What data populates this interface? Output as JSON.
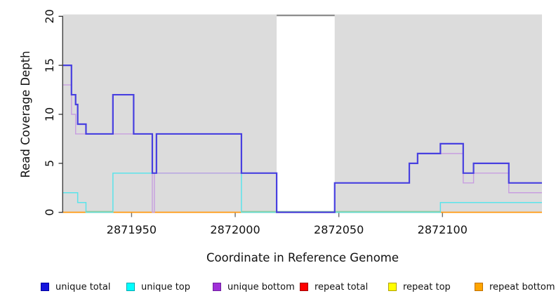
{
  "figure": {
    "xlabel": "Coordinate in Reference Genome",
    "ylabel": "Read Coverage Depth"
  },
  "chart_data": {
    "type": "line",
    "subtype": "step-coverage-plot",
    "title": "",
    "xlabel": "Coordinate in Reference Genome",
    "ylabel": "Read Coverage Depth",
    "xlim": [
      2871917,
      2872148
    ],
    "ylim": [
      0,
      20
    ],
    "x_ticks": [
      "2871950",
      "2872000",
      "2872050",
      "2872100"
    ],
    "x_tick_values": [
      2871950,
      2872000,
      2872050,
      2872100
    ],
    "y_ticks": [
      "0",
      "5",
      "10",
      "15",
      "20"
    ],
    "y_tick_values": [
      0,
      5,
      10,
      15,
      20
    ],
    "grid": false,
    "plot_bg_color": "#dcdcdc",
    "background_regions": [
      [
        2871917,
        2872020
      ],
      [
        2872048,
        2872148
      ]
    ],
    "coverage_gap": {
      "start": 2872020,
      "end": 2872048,
      "cap_value": 20.1,
      "cap_color": "#8f8f8f"
    },
    "series": [
      {
        "name": "repeat total",
        "color": "#dd1111",
        "width": 1.4,
        "steps": [
          [
            2871917,
            0
          ]
        ],
        "x_end": 2872148
      },
      {
        "name": "repeat top",
        "color": "#f2f20a",
        "width": 1.4,
        "steps": [
          [
            2871917,
            0
          ]
        ],
        "x_end": 2872148
      },
      {
        "name": "repeat bottom",
        "color": "#ff9d1c",
        "width": 1.8,
        "steps": [
          [
            2871917,
            0
          ]
        ],
        "x_end": 2872148
      },
      {
        "name": "unique top",
        "color": "#5be4ea",
        "width": 1.5,
        "zero_color": "#93cda0",
        "steps": [
          [
            2871917,
            2
          ],
          [
            2871924,
            1
          ],
          [
            2871928,
            0
          ],
          [
            2871941,
            4
          ],
          [
            2872003,
            0
          ],
          [
            2872099,
            1
          ]
        ],
        "x_end": 2872148
      },
      {
        "name": "unique bottom",
        "color": "#c79ee0",
        "width": 1.4,
        "steps": [
          [
            2871917,
            13
          ],
          [
            2871921,
            10
          ],
          [
            2871923,
            8
          ],
          [
            2871960,
            0
          ],
          [
            2871961,
            4
          ],
          [
            2872020,
            0
          ],
          [
            2872048,
            3
          ],
          [
            2872084,
            5
          ],
          [
            2872088,
            6
          ],
          [
            2872110,
            3
          ],
          [
            2872115,
            4
          ],
          [
            2872132,
            2
          ]
        ],
        "x_end": 2872148
      },
      {
        "name": "unique total",
        "color": "#4840e0",
        "width": 2.2,
        "steps": [
          [
            2871917,
            15
          ],
          [
            2871921,
            12
          ],
          [
            2871923,
            11
          ],
          [
            2871924,
            9
          ],
          [
            2871928,
            8
          ],
          [
            2871941,
            12
          ],
          [
            2871951,
            8
          ],
          [
            2871960,
            4
          ],
          [
            2871962,
            8
          ],
          [
            2872003,
            4
          ],
          [
            2872020,
            0
          ],
          [
            2872048,
            3
          ],
          [
            2872084,
            5
          ],
          [
            2872088,
            6
          ],
          [
            2872099,
            7
          ],
          [
            2872110,
            4
          ],
          [
            2872115,
            5
          ],
          [
            2872132,
            3
          ]
        ],
        "x_end": 2872148
      }
    ],
    "legend_position": "bottom"
  },
  "legend": {
    "items": [
      {
        "label": "unique total",
        "fill": "#1515dd",
        "border": "#0000a0"
      },
      {
        "label": "unique top",
        "fill": "#00ffff",
        "border": "#00a8b0"
      },
      {
        "label": "unique bottom",
        "fill": "#a030d8",
        "border": "#7020a0"
      },
      {
        "label": "repeat total",
        "fill": "#ff0000",
        "border": "#a00000"
      },
      {
        "label": "repeat top",
        "fill": "#ffff00",
        "border": "#b0a000"
      },
      {
        "label": "repeat bottom",
        "fill": "#ffa500",
        "border": "#c07000"
      }
    ]
  }
}
